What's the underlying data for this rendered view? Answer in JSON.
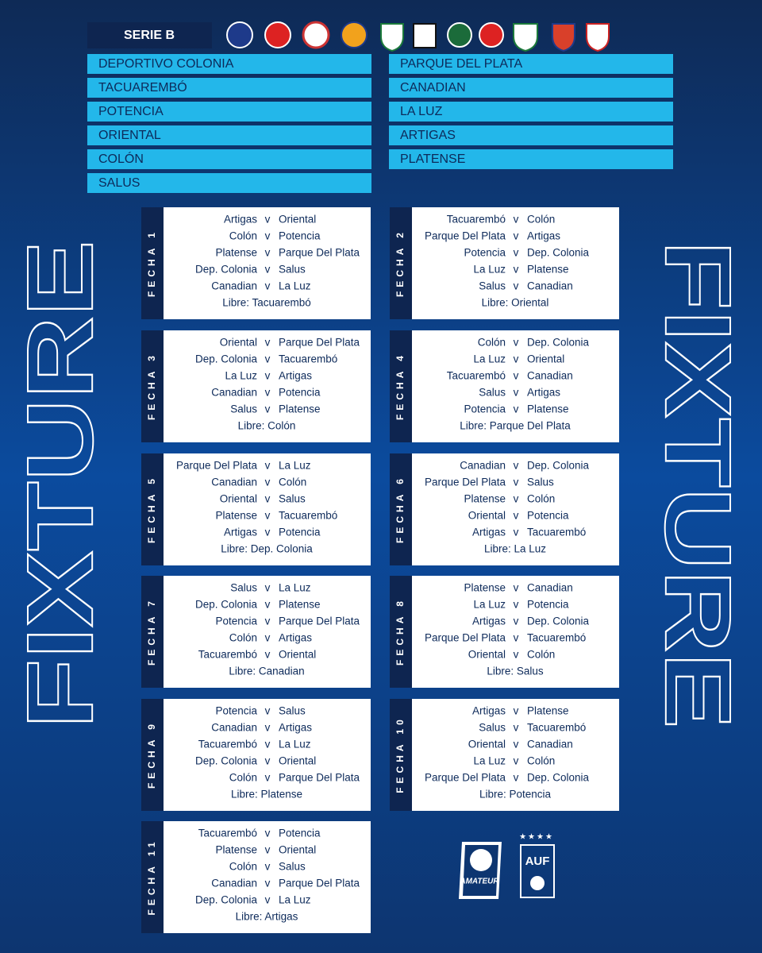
{
  "header": {
    "series": "SERIE B"
  },
  "teams": {
    "left": [
      "DEPORTIVO COLONIA",
      "TACUAREMBÓ",
      "POTENCIA",
      "ORIENTAL",
      "COLÓN",
      "SALUS"
    ],
    "right": [
      "PARQUE DEL PLATA",
      "CANADIAN",
      "LA LUZ",
      "ARTIGAS",
      "PLATENSE"
    ]
  },
  "side_titles": [
    "FIXTURE",
    "FIXTURE"
  ],
  "fechas": [
    {
      "label": "FECHA 1",
      "matches": [
        [
          "Artigas",
          "v",
          "Oriental"
        ],
        [
          "Colón",
          "v",
          "Potencia"
        ],
        [
          "Platense",
          "v",
          "Parque Del Plata"
        ],
        [
          "Dep. Colonia",
          "v",
          "Salus"
        ],
        [
          "Canadian",
          "v",
          "La Luz"
        ]
      ],
      "bye": "Libre: Tacuarembó"
    },
    {
      "label": "FECHA 2",
      "matches": [
        [
          "Tacuarembó",
          "v",
          "Colón"
        ],
        [
          "Parque Del Plata",
          "v",
          "Artigas"
        ],
        [
          "Potencia",
          "v",
          "Dep. Colonia"
        ],
        [
          "La Luz",
          "v",
          "Platense"
        ],
        [
          "Salus",
          "v",
          "Canadian"
        ]
      ],
      "bye": "Libre: Oriental"
    },
    {
      "label": "FECHA 3",
      "matches": [
        [
          "Oriental",
          "v",
          "Parque Del Plata"
        ],
        [
          "Dep. Colonia",
          "v",
          "Tacuarembó"
        ],
        [
          "La Luz",
          "v",
          "Artigas"
        ],
        [
          "Canadian",
          "v",
          "Potencia"
        ],
        [
          "Salus",
          "v",
          "Platense"
        ]
      ],
      "bye": "Libre: Colón"
    },
    {
      "label": "FECHA 4",
      "matches": [
        [
          "Colón",
          "v",
          "Dep. Colonia"
        ],
        [
          "La Luz",
          "v",
          "Oriental"
        ],
        [
          "Tacuarembó",
          "v",
          "Canadian"
        ],
        [
          "Salus",
          "v",
          "Artigas"
        ],
        [
          "Potencia",
          "v",
          "Platense"
        ]
      ],
      "bye": "Libre: Parque Del Plata"
    },
    {
      "label": "FECHA 5",
      "matches": [
        [
          "Parque Del Plata",
          "v",
          "La Luz"
        ],
        [
          "Canadian",
          "v",
          "Colón"
        ],
        [
          "Oriental",
          "v",
          "Salus"
        ],
        [
          "Platense",
          "v",
          "Tacuarembó"
        ],
        [
          "Artigas",
          "v",
          "Potencia"
        ]
      ],
      "bye": "Libre: Dep. Colonia"
    },
    {
      "label": "FECHA 6",
      "matches": [
        [
          "Canadian",
          "v",
          "Dep. Colonia"
        ],
        [
          "Parque Del Plata",
          "v",
          "Salus"
        ],
        [
          "Platense",
          "v",
          "Colón"
        ],
        [
          "Oriental",
          "v",
          "Potencia"
        ],
        [
          "Artigas",
          "v",
          "Tacuarembó"
        ]
      ],
      "bye": "Libre: La Luz"
    },
    {
      "label": "FECHA 7",
      "matches": [
        [
          "Salus",
          "v",
          "La Luz"
        ],
        [
          "Dep. Colonia",
          "v",
          "Platense"
        ],
        [
          "Potencia",
          "v",
          "Parque Del Plata"
        ],
        [
          "Colón",
          "v",
          "Artigas"
        ],
        [
          "Tacuarembó",
          "v",
          "Oriental"
        ]
      ],
      "bye": "Libre: Canadian"
    },
    {
      "label": "FECHA 8",
      "matches": [
        [
          "Platense",
          "v",
          "Canadian"
        ],
        [
          "La Luz",
          "v",
          "Potencia"
        ],
        [
          "Artigas",
          "v",
          "Dep. Colonia"
        ],
        [
          "Parque Del Plata",
          "v",
          "Tacuarembó"
        ],
        [
          "Oriental",
          "v",
          "Colón"
        ]
      ],
      "bye": "Libre: Salus"
    },
    {
      "label": "FECHA 9",
      "matches": [
        [
          "Potencia",
          "v",
          "Salus"
        ],
        [
          "Canadian",
          "v",
          "Artigas"
        ],
        [
          "Tacuarembó",
          "v",
          "La Luz"
        ],
        [
          "Dep. Colonia",
          "v",
          "Oriental"
        ],
        [
          "Colón",
          "v",
          "Parque Del Plata"
        ]
      ],
      "bye": "Libre: Platense"
    },
    {
      "label": "FECHA 10",
      "matches": [
        [
          "Artigas",
          "v",
          "Platense"
        ],
        [
          "Salus",
          "v",
          "Tacuarembó"
        ],
        [
          "Oriental",
          "v",
          "Canadian"
        ],
        [
          "La Luz",
          "v",
          "Colón"
        ],
        [
          "Parque Del Plata",
          "v",
          "Dep. Colonia"
        ]
      ],
      "bye": "Libre: Potencia"
    },
    {
      "label": "FECHA 11",
      "matches": [
        [
          "Tacuarembó",
          "v",
          "Potencia"
        ],
        [
          "Platense",
          "v",
          "Oriental"
        ],
        [
          "Colón",
          "v",
          "Salus"
        ],
        [
          "Canadian",
          "v",
          "Parque Del Plata"
        ],
        [
          "Dep. Colonia",
          "v",
          "La Luz"
        ]
      ],
      "bye": "Libre: Artigas"
    }
  ],
  "logos": {
    "amateur": "AMATEUR",
    "auf": "AUF"
  }
}
